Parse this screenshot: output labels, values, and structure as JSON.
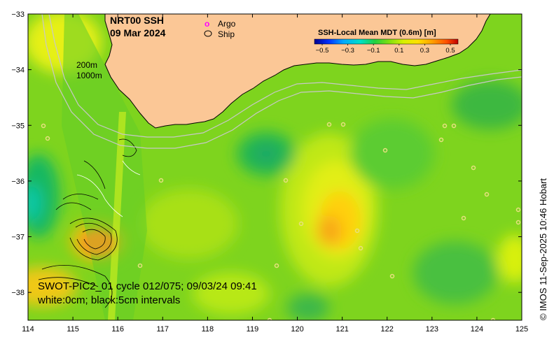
{
  "title": {
    "line1": "NRT00 SSH",
    "line2": "09 Mar 2024"
  },
  "legend": {
    "argo_symbol": "o",
    "argo_label": "Argo",
    "ship_label": "Ship"
  },
  "isobaths": {
    "shallow": "200m",
    "deep": "1000m"
  },
  "colorbar": {
    "title": "SSH-Local Mean MDT (0.6m) [m]",
    "ticks": [
      "−0.5",
      "−0.3",
      "−0.1",
      "0.1",
      "0.3",
      "0.5"
    ],
    "colors": [
      "#00008f",
      "#0030ff",
      "#00a8ff",
      "#00e6c8",
      "#22d040",
      "#80e010",
      "#d8f000",
      "#ffe000",
      "#ffa000",
      "#ff5000",
      "#c00000"
    ]
  },
  "swot": {
    "line1": "SWOT-PIC2_01 cycle 012/075; 09/03/24 09:41",
    "line2": "white:0cm; black:5cm intervals"
  },
  "credit": "© IMOS 11-Sep-2025 10:46 Hobart",
  "axes": {
    "lon_ticks": [
      "114",
      "115",
      "116",
      "117",
      "118",
      "119",
      "120",
      "121",
      "122",
      "123",
      "124",
      "125"
    ],
    "lat_ticks": [
      "−33",
      "−34",
      "−35",
      "−36",
      "−37",
      "−38"
    ],
    "lon_range": [
      114,
      125
    ],
    "lat_range": [
      -38.5,
      -33
    ]
  },
  "colors": {
    "land": "#fbc796",
    "ocean_base": "#7ed41e",
    "coast": "#000000",
    "isobath": "#c8c8c8"
  }
}
